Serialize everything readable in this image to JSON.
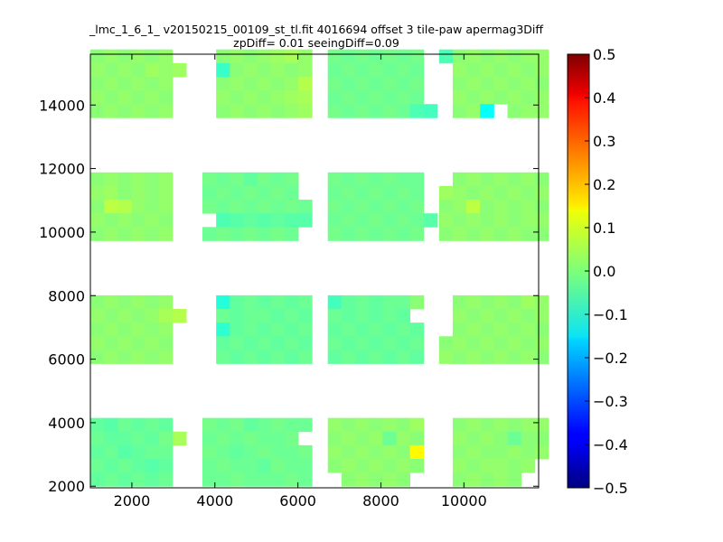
{
  "chart_data": {
    "type": "heatmap",
    "title_line1": "_lmc_1_6_1_ v20150215_00109_st_tl.fit 4016694 offset 3 tile-paw apermag3Diff",
    "title_line2": "zpDiff= 0.01 seeingDiff=0.09",
    "xlabel": "",
    "ylabel": "",
    "xlim": [
      1000,
      11800
    ],
    "ylim": [
      1950,
      15600
    ],
    "x_ticks": [
      2000,
      4000,
      6000,
      8000,
      10000
    ],
    "y_ticks": [
      2000,
      4000,
      6000,
      8000,
      10000,
      12000,
      14000
    ],
    "colorbar": {
      "colormap": "jet",
      "vmin": -0.5,
      "vmax": 0.5,
      "ticks": [
        0.5,
        0.4,
        0.3,
        0.2,
        0.1,
        0.0,
        -0.1,
        -0.2,
        -0.3,
        -0.4,
        -0.5
      ],
      "tick_labels": [
        "0.5",
        "0.4",
        "0.3",
        "0.2",
        "0.1",
        "0.0",
        "−0.1",
        "−0.2",
        "−0.3",
        "−0.4",
        "−0.5"
      ]
    },
    "cell_width": 330,
    "cell_height": 430,
    "column_x_starts": [
      1000,
      3700,
      6720,
      9400
    ],
    "row_y_starts": [
      2000,
      5860,
      9730,
      13600
    ],
    "cols_per_detector": 8,
    "rows_per_detector": 5,
    "detector_values": [
      [
        [
          -0.03,
          -0.04,
          -0.02,
          -0.03,
          -0.02,
          -0.03,
          null,
          null
        ],
        [
          -0.02,
          -0.03,
          -0.03,
          -0.02,
          -0.03,
          -0.01,
          0.04,
          null
        ],
        [
          -0.03,
          -0.02,
          -0.04,
          -0.03,
          -0.02,
          -0.02,
          null,
          null
        ],
        [
          -0.02,
          -0.03,
          -0.02,
          -0.03,
          -0.04,
          -0.03,
          null,
          null
        ],
        [
          -0.03,
          -0.02,
          -0.03,
          -0.02,
          -0.03,
          -0.02,
          null,
          null
        ]
      ],
      [
        [
          -0.01,
          -0.02,
          -0.01,
          -0.03,
          -0.02,
          -0.01,
          -0.02,
          -0.02
        ],
        [
          -0.02,
          -0.01,
          -0.02,
          -0.01,
          -0.02,
          -0.02,
          -0.01,
          null
        ],
        [
          -0.01,
          -0.02,
          -0.03,
          -0.02,
          -0.01,
          -0.02,
          -0.02,
          -0.01
        ],
        [
          -0.02,
          -0.01,
          -0.02,
          -0.02,
          -0.03,
          -0.01,
          -0.02,
          -0.02
        ],
        [
          -0.02,
          -0.02,
          -0.01,
          -0.02,
          -0.02,
          -0.02,
          -0.01,
          -0.02
        ]
      ],
      [
        [
          0.02,
          0.01,
          0.02,
          0.01,
          0.02,
          0.01,
          0.03,
          null
        ],
        [
          0.01,
          0.02,
          0.01,
          0.02,
          -0.02,
          0.02,
          0.01,
          null
        ],
        [
          0.02,
          0.01,
          0.02,
          0.01,
          0.02,
          0.01,
          0.13,
          null
        ],
        [
          0.01,
          0.02,
          0.01,
          0.02,
          0.01,
          0.02,
          0.01,
          null
        ],
        [
          null,
          0.01,
          0.02,
          0.01,
          0.02,
          0.01,
          null,
          null
        ]
      ],
      [
        [
          null,
          0.01,
          0.02,
          0.01,
          0.02,
          0.01,
          0.02,
          0.02
        ],
        [
          null,
          0.02,
          0.01,
          0.02,
          0.01,
          -0.02,
          0.01,
          0.01
        ],
        [
          null,
          0.01,
          0.02,
          0.01,
          0.01,
          0.02,
          0.01,
          0.02
        ],
        [
          null,
          0.02,
          0.01,
          0.02,
          0.02,
          0.01,
          0.02,
          null
        ],
        [
          null,
          0.01,
          0.02,
          0.01,
          0.02,
          0.01,
          null,
          null
        ]
      ],
      [
        [
          0.01,
          0.02,
          0.01,
          0.02,
          0.01,
          0.02,
          null,
          null
        ],
        [
          0.02,
          0.01,
          0.02,
          0.01,
          0.02,
          0.04,
          0.05,
          null
        ],
        [
          0.01,
          0.02,
          0.01,
          0.02,
          0.01,
          0.02,
          null,
          null
        ],
        [
          0.02,
          0.01,
          0.02,
          0.01,
          0.02,
          0.01,
          null,
          null
        ],
        [
          0.01,
          0.02,
          0.01,
          0.02,
          0.01,
          0.02,
          null,
          null
        ]
      ],
      [
        [
          null,
          -0.09,
          -0.03,
          -0.02,
          -0.03,
          -0.02,
          -0.03,
          -0.02
        ],
        [
          null,
          -0.02,
          -0.03,
          -0.02,
          -0.02,
          -0.03,
          -0.02,
          -0.03
        ],
        [
          null,
          -0.08,
          -0.03,
          -0.02,
          -0.03,
          -0.02,
          -0.03,
          -0.02
        ],
        [
          null,
          -0.03,
          -0.02,
          -0.03,
          -0.02,
          -0.03,
          -0.02,
          -0.03
        ],
        [
          null,
          -0.02,
          -0.03,
          -0.02,
          -0.03,
          -0.02,
          -0.03,
          -0.02
        ]
      ],
      [
        [
          -0.06,
          -0.03,
          -0.02,
          -0.03,
          -0.02,
          -0.02,
          0.01,
          null
        ],
        [
          -0.02,
          -0.03,
          -0.02,
          -0.03,
          -0.02,
          -0.03,
          null,
          null
        ],
        [
          -0.03,
          -0.02,
          -0.03,
          -0.02,
          -0.03,
          -0.02,
          -0.03,
          null
        ],
        [
          -0.02,
          -0.03,
          -0.02,
          -0.03,
          -0.02,
          -0.03,
          -0.02,
          null
        ],
        [
          -0.03,
          -0.02,
          -0.03,
          -0.02,
          -0.03,
          -0.02,
          -0.03,
          null
        ]
      ],
      [
        [
          null,
          0.01,
          0.02,
          0.01,
          0.02,
          0.01,
          0.03,
          0.02
        ],
        [
          null,
          0.02,
          0.01,
          0.02,
          0.01,
          0.02,
          0.01,
          0.02
        ],
        [
          null,
          0.01,
          0.02,
          0.01,
          0.02,
          0.01,
          0.02,
          0.01
        ],
        [
          0.01,
          0.02,
          0.01,
          0.02,
          0.01,
          0.02,
          0.01,
          0.02
        ],
        [
          0.02,
          0.01,
          0.02,
          0.01,
          0.02,
          0.01,
          0.02,
          0.01
        ]
      ],
      [
        [
          0.01,
          0.02,
          0.01,
          0.02,
          0.01,
          0.02,
          null,
          null
        ],
        [
          0.02,
          0.03,
          0.01,
          0.02,
          0.01,
          0.02,
          null,
          null
        ],
        [
          0.01,
          0.06,
          0.05,
          0.02,
          0.01,
          0.02,
          null,
          null
        ],
        [
          0.02,
          0.01,
          0.02,
          0.01,
          0.02,
          0.01,
          null,
          null
        ],
        [
          0.01,
          0.02,
          0.01,
          0.02,
          0.01,
          0.02,
          null,
          null
        ]
      ],
      [
        [
          -0.01,
          -0.02,
          -0.01,
          -0.03,
          -0.01,
          -0.02,
          -0.01,
          null
        ],
        [
          -0.02,
          -0.01,
          -0.02,
          -0.01,
          -0.02,
          -0.01,
          -0.02,
          null
        ],
        [
          -0.01,
          -0.02,
          -0.01,
          -0.02,
          -0.01,
          -0.02,
          -0.01,
          -0.02
        ],
        [
          null,
          -0.05,
          -0.04,
          -0.03,
          -0.04,
          -0.03,
          -0.04,
          -0.04
        ],
        [
          -0.02,
          -0.01,
          -0.02,
          -0.01,
          -0.02,
          -0.01,
          -0.02,
          null
        ]
      ],
      [
        [
          -0.01,
          -0.02,
          -0.01,
          -0.02,
          -0.01,
          -0.02,
          -0.02,
          null
        ],
        [
          -0.02,
          -0.01,
          -0.02,
          -0.01,
          -0.02,
          -0.01,
          -0.02,
          null
        ],
        [
          -0.01,
          -0.02,
          -0.01,
          -0.02,
          -0.01,
          -0.02,
          -0.01,
          null
        ],
        [
          -0.02,
          -0.01,
          -0.02,
          -0.01,
          -0.02,
          -0.01,
          -0.02,
          -0.04
        ],
        [
          -0.01,
          -0.02,
          -0.01,
          -0.02,
          -0.01,
          -0.02,
          -0.01,
          null
        ]
      ],
      [
        [
          null,
          0.01,
          0.02,
          0.01,
          0.02,
          0.01,
          0.02,
          0.01
        ],
        [
          0.03,
          0.02,
          0.01,
          0.02,
          0.01,
          0.02,
          0.01,
          0.02
        ],
        [
          0.01,
          0.02,
          0.06,
          0.01,
          0.02,
          0.01,
          0.02,
          0.01
        ],
        [
          0.02,
          0.01,
          0.02,
          0.01,
          0.02,
          0.01,
          0.02,
          0.02
        ],
        [
          0.01,
          0.02,
          0.01,
          0.02,
          0.01,
          0.02,
          0.01,
          0.01
        ]
      ],
      [
        [
          0.01,
          0.02,
          0.01,
          0.02,
          0.01,
          0.02,
          null,
          null
        ],
        [
          0.02,
          0.01,
          0.02,
          0.01,
          0.03,
          0.02,
          0.03,
          null
        ],
        [
          0.01,
          0.02,
          0.01,
          0.02,
          0.01,
          0.02,
          null,
          null
        ],
        [
          0.02,
          0.01,
          0.02,
          0.01,
          0.02,
          0.01,
          null,
          null
        ],
        [
          0.01,
          0.02,
          0.01,
          0.02,
          0.01,
          0.02,
          null,
          null
        ]
      ],
      [
        [
          null,
          0.01,
          0.02,
          0.01,
          0.02,
          0.03,
          0.04,
          0.02
        ],
        [
          null,
          -0.07,
          0.01,
          0.02,
          0.01,
          0.02,
          0.01,
          0.02
        ],
        [
          null,
          0.01,
          0.02,
          0.01,
          0.02,
          0.01,
          0.02,
          0.05
        ],
        [
          null,
          0.02,
          0.01,
          0.02,
          0.01,
          0.02,
          0.03,
          0.04
        ],
        [
          null,
          0.01,
          0.02,
          0.01,
          0.02,
          0.01,
          0.02,
          0.03
        ]
      ],
      [
        [
          -0.01,
          -0.02,
          -0.01,
          -0.02,
          -0.01,
          -0.02,
          -0.01,
          null
        ],
        [
          -0.02,
          -0.01,
          -0.02,
          -0.01,
          -0.02,
          -0.01,
          -0.02,
          null
        ],
        [
          -0.01,
          -0.02,
          -0.01,
          -0.02,
          -0.01,
          -0.02,
          -0.01,
          null
        ],
        [
          -0.02,
          -0.01,
          -0.02,
          -0.01,
          -0.02,
          -0.01,
          -0.02,
          null
        ],
        [
          -0.01,
          -0.02,
          -0.01,
          -0.02,
          -0.01,
          -0.02,
          -0.05,
          -0.06
        ]
      ],
      [
        [
          -0.05,
          0.01,
          0.02,
          0.01,
          0.02,
          0.01,
          0.02,
          0.02
        ],
        [
          null,
          0.02,
          0.01,
          0.02,
          0.01,
          0.02,
          0.01,
          0.02
        ],
        [
          null,
          0.01,
          0.02,
          0.01,
          0.02,
          0.01,
          0.02,
          0.01
        ],
        [
          null,
          0.02,
          0.01,
          0.02,
          0.01,
          0.02,
          0.01,
          0.02
        ],
        [
          null,
          0.01,
          0.02,
          -0.12,
          null,
          0.01,
          0.02,
          0.02
        ]
      ]
    ]
  }
}
